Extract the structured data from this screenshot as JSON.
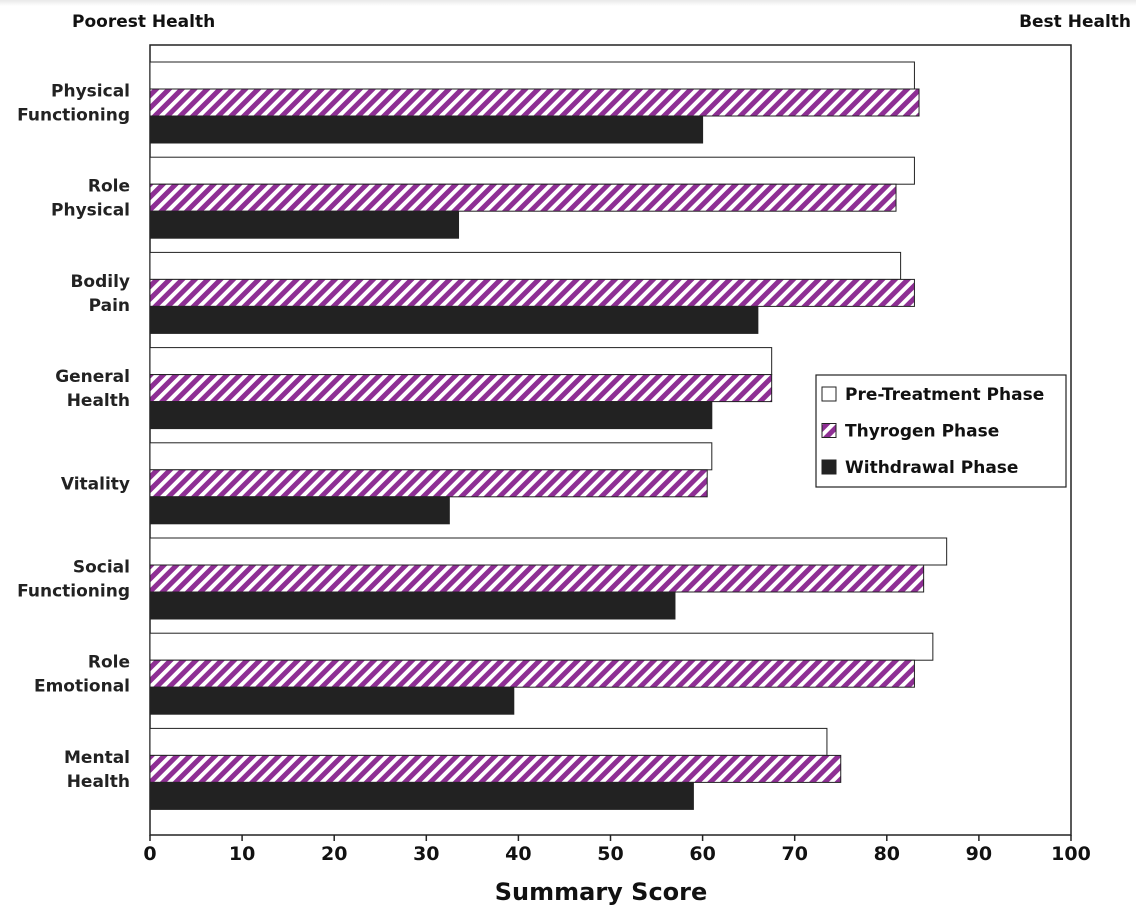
{
  "chart_data": {
    "type": "bar",
    "orientation": "horizontal",
    "title": "",
    "xlabel": "Summary Score",
    "ylabel": "",
    "left_annotation": "Poorest Health",
    "right_annotation": "Best Health",
    "xlim": [
      0,
      100
    ],
    "xticks": [
      0,
      10,
      20,
      30,
      40,
      50,
      60,
      70,
      80,
      90,
      100
    ],
    "grid": false,
    "legend_position": "right",
    "categories": [
      [
        "Physical",
        "Functioning"
      ],
      [
        "Role",
        "Physical"
      ],
      [
        "Bodily",
        "Pain"
      ],
      [
        "General",
        "Health"
      ],
      [
        "Vitality"
      ],
      [
        "Social",
        "Functioning"
      ],
      [
        "Role",
        "Emotional"
      ],
      [
        "Mental",
        "Health"
      ]
    ],
    "series": [
      {
        "name": "Pre-Treatment Phase",
        "style": "outline",
        "color": "#ffffff",
        "values": [
          83,
          83,
          81.5,
          67.5,
          61,
          86.5,
          85,
          73.5
        ]
      },
      {
        "name": "Thyrogen Phase",
        "style": "hatched",
        "color": "#8e2f94",
        "values": [
          83.5,
          81,
          83,
          67.5,
          60.5,
          84,
          83,
          75
        ]
      },
      {
        "name": "Withdrawal Phase",
        "style": "solid",
        "color": "#222222",
        "values": [
          60,
          33.5,
          66,
          61,
          32.5,
          57,
          39.5,
          59
        ]
      }
    ]
  }
}
